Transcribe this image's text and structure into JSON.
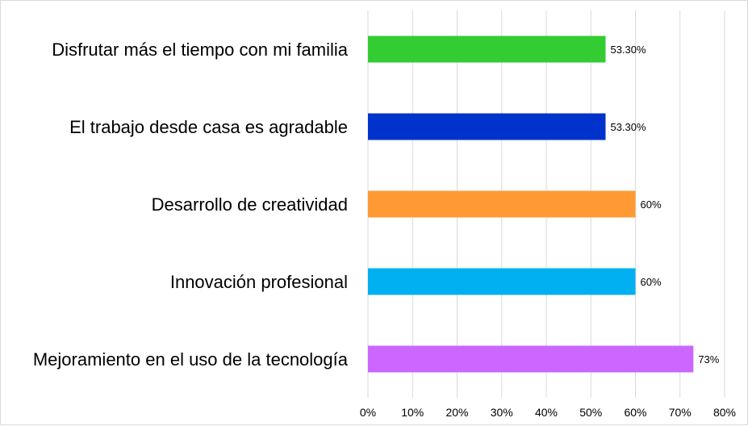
{
  "chart_data": {
    "type": "bar",
    "orientation": "horizontal",
    "categories": [
      "Disfrutar más el tiempo con mi familia",
      "El trabajo desde casa es agradable",
      "Desarrollo de creatividad",
      "Innovación profesional",
      "Mejoramiento en el uso de la tecnología"
    ],
    "values": [
      53.3,
      53.3,
      60,
      60,
      73
    ],
    "value_labels": [
      "53.30%",
      "53.30%",
      "60%",
      "60%",
      "73%"
    ],
    "colors": [
      "#33cc33",
      "#0033cc",
      "#ff9933",
      "#00b0f0",
      "#cc66ff"
    ],
    "xlim": [
      0,
      80
    ],
    "x_ticks": [
      0,
      10,
      20,
      30,
      40,
      50,
      60,
      70,
      80
    ],
    "x_tick_labels": [
      "0%",
      "10%",
      "20%",
      "30%",
      "40%",
      "50%",
      "60%",
      "70%",
      "80%"
    ],
    "grid": true,
    "legend": "none"
  }
}
